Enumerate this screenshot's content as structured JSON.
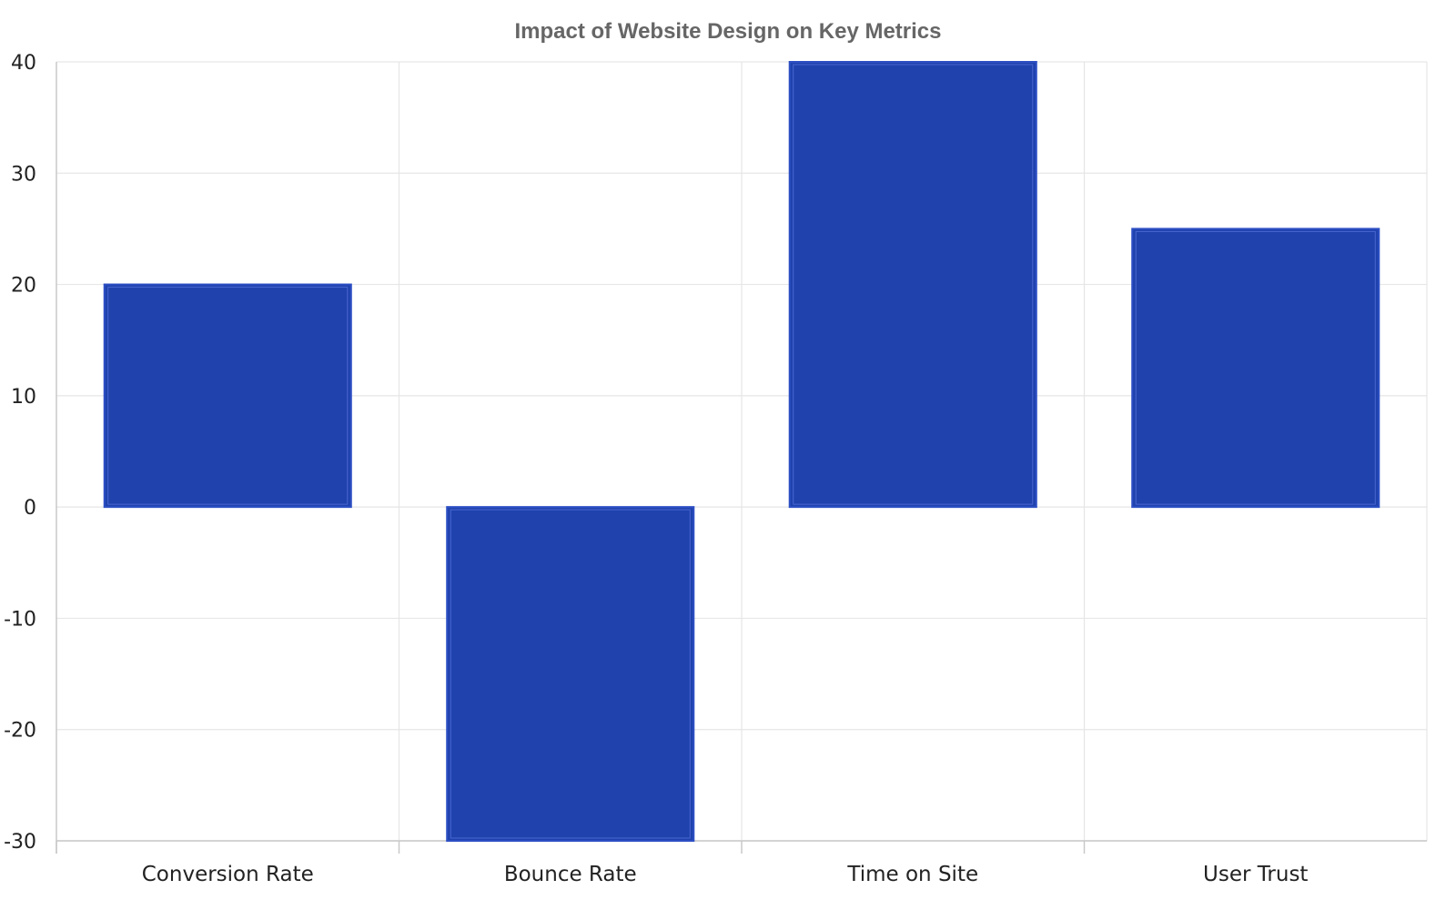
{
  "chart_data": {
    "type": "bar",
    "title": "Impact of Website Design on Key Metrics",
    "xlabel": "",
    "ylabel": "",
    "categories": [
      "Conversion Rate",
      "Bounce Rate",
      "Time on Site",
      "User Trust"
    ],
    "values": [
      20,
      -30,
      40,
      25
    ],
    "ylim": [
      -30,
      40
    ],
    "yticks": [
      40,
      30,
      20,
      10,
      0,
      -10,
      -20,
      -30
    ],
    "grid": true,
    "legend": "none",
    "colors": {
      "bar_fill": "#1f42ad",
      "bar_edge": "#2d4fc4",
      "bar_inner_line": "#4a66d0",
      "grid": "#e6e6e6",
      "axis": "#c8c8c8",
      "title": "#666666",
      "text": "#222222"
    }
  }
}
